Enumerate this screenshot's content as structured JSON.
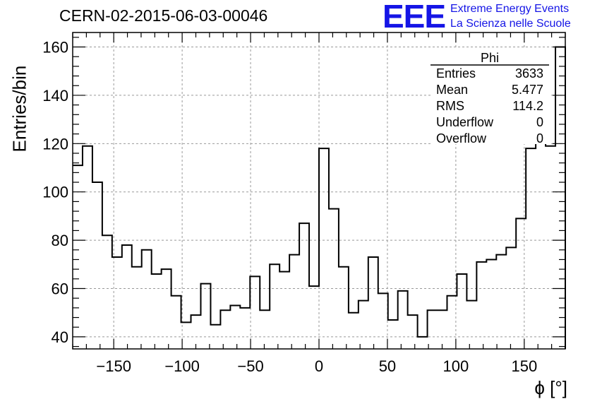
{
  "header": {
    "title": "CERN-02-2015-06-03-00046",
    "logo_text": "EEE",
    "org_line1": "Extreme Energy Events",
    "org_line2": "La Scienza nelle Scuole"
  },
  "stats_box": {
    "name": "Phi",
    "rows": [
      {
        "label": "Entries",
        "value": "3633"
      },
      {
        "label": "Mean",
        "value": "5.477"
      },
      {
        "label": "RMS",
        "value": "114.2"
      },
      {
        "label": "Underflow",
        "value": "0"
      },
      {
        "label": "Overflow",
        "value": "0"
      }
    ]
  },
  "chart_data": {
    "type": "histogram",
    "xlabel": "ϕ [°]",
    "ylabel": "Entries/bin",
    "xlim": [
      -180,
      180
    ],
    "ylim": [
      35,
      166
    ],
    "grid": true,
    "x_ticks": [
      -150,
      -100,
      -50,
      0,
      50,
      100,
      150
    ],
    "y_ticks": [
      40,
      60,
      80,
      100,
      120,
      140,
      160
    ],
    "bin_width": 7.2,
    "values": [
      111,
      119,
      104,
      82,
      73,
      78,
      69,
      76,
      66,
      68,
      57,
      46,
      49,
      62,
      45,
      51,
      53,
      52,
      65,
      51,
      70,
      67,
      74,
      87,
      61,
      118,
      93,
      69,
      50,
      55,
      73,
      58,
      47,
      59,
      49,
      40,
      51,
      51,
      57,
      66,
      55,
      71,
      72,
      74,
      77,
      89,
      118,
      126,
      119,
      160
    ]
  }
}
